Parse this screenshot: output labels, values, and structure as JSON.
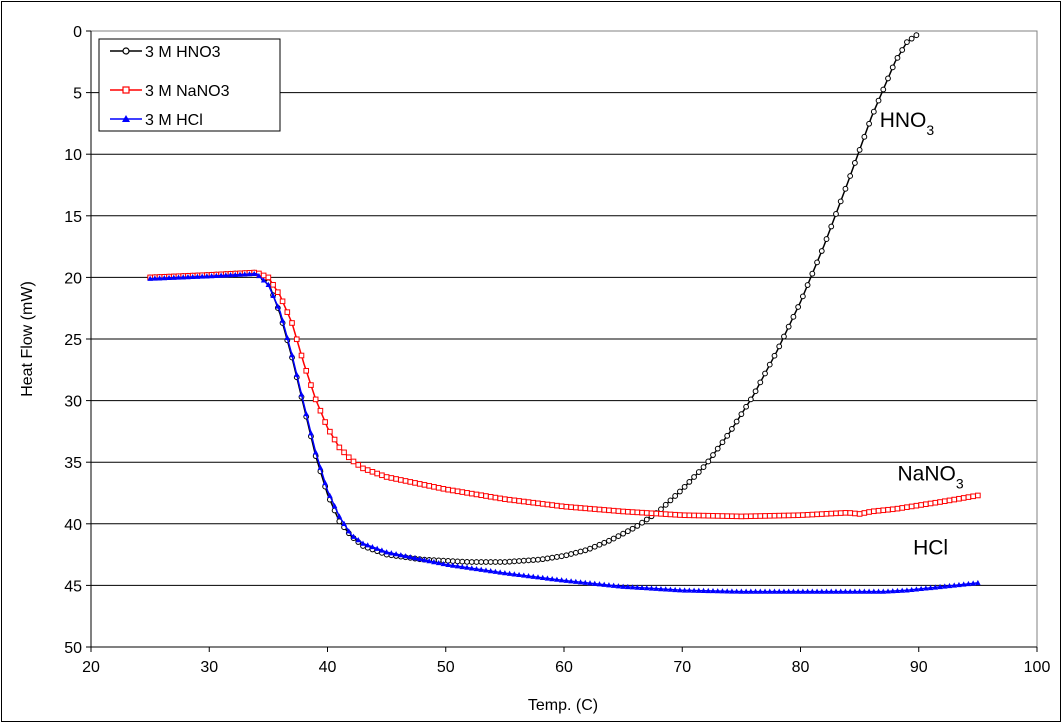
{
  "chart_data": {
    "type": "line",
    "title": "",
    "xlabel": "Temp. (C)",
    "ylabel": "Heat Flow (mW)",
    "xlim": [
      20,
      100
    ],
    "ylim": [
      0,
      50
    ],
    "y_reversed": true,
    "x_ticks": [
      20,
      30,
      40,
      50,
      60,
      70,
      80,
      90,
      100
    ],
    "y_ticks": [
      0,
      5,
      10,
      15,
      20,
      25,
      30,
      35,
      40,
      45,
      50
    ],
    "grid": "horizontal major gridlines",
    "legend_position": "top-left",
    "series": [
      {
        "name": "3 M HNO3",
        "color": "#000000",
        "marker": "circle",
        "points": [
          [
            25,
            20.0
          ],
          [
            30,
            19.8
          ],
          [
            34,
            19.6
          ],
          [
            35,
            20.4
          ],
          [
            36,
            23.0
          ],
          [
            37,
            26.5
          ],
          [
            38,
            30.5
          ],
          [
            39,
            34.5
          ],
          [
            40,
            37.6
          ],
          [
            41,
            39.8
          ],
          [
            42,
            41.0
          ],
          [
            43,
            41.8
          ],
          [
            45,
            42.5
          ],
          [
            48,
            42.9
          ],
          [
            52,
            43.1
          ],
          [
            55,
            43.1
          ],
          [
            58,
            42.9
          ],
          [
            60,
            42.6
          ],
          [
            62,
            42.1
          ],
          [
            64,
            41.3
          ],
          [
            66,
            40.3
          ],
          [
            68,
            39.0
          ],
          [
            70,
            37.2
          ],
          [
            72,
            35.2
          ],
          [
            74,
            32.6
          ],
          [
            76,
            29.6
          ],
          [
            78,
            26.0
          ],
          [
            80,
            22.0
          ],
          [
            82,
            17.4
          ],
          [
            84,
            12.3
          ],
          [
            86,
            7.0
          ],
          [
            88,
            2.5
          ],
          [
            89,
            0.9
          ],
          [
            90,
            0.2
          ]
        ]
      },
      {
        "name": "3 M NaNO3",
        "color": "#ff0000",
        "marker": "square",
        "points": [
          [
            25,
            20.0
          ],
          [
            30,
            19.8
          ],
          [
            34,
            19.6
          ],
          [
            35,
            20.0
          ],
          [
            36,
            21.5
          ],
          [
            37,
            23.7
          ],
          [
            38,
            27.0
          ],
          [
            39,
            29.9
          ],
          [
            40,
            32.2
          ],
          [
            41,
            33.8
          ],
          [
            42,
            34.8
          ],
          [
            43,
            35.5
          ],
          [
            45,
            36.2
          ],
          [
            50,
            37.2
          ],
          [
            55,
            38.0
          ],
          [
            60,
            38.6
          ],
          [
            65,
            39.0
          ],
          [
            70,
            39.3
          ],
          [
            75,
            39.4
          ],
          [
            80,
            39.3
          ],
          [
            84,
            39.1
          ],
          [
            85,
            39.2
          ],
          [
            86,
            39.0
          ],
          [
            88,
            38.8
          ],
          [
            90,
            38.5
          ],
          [
            92,
            38.2
          ],
          [
            95,
            37.7
          ]
        ]
      },
      {
        "name": "3 M HCl",
        "color": "#0000ff",
        "marker": "triangle",
        "points": [
          [
            25,
            20.1
          ],
          [
            30,
            19.9
          ],
          [
            34,
            19.7
          ],
          [
            35,
            20.6
          ],
          [
            36,
            22.8
          ],
          [
            37,
            26.3
          ],
          [
            38,
            30.3
          ],
          [
            39,
            34.2
          ],
          [
            40,
            37.3
          ],
          [
            41,
            39.4
          ],
          [
            42,
            40.9
          ],
          [
            43,
            41.6
          ],
          [
            45,
            42.3
          ],
          [
            50,
            43.3
          ],
          [
            55,
            44.0
          ],
          [
            60,
            44.6
          ],
          [
            65,
            45.1
          ],
          [
            70,
            45.4
          ],
          [
            75,
            45.5
          ],
          [
            80,
            45.5
          ],
          [
            85,
            45.5
          ],
          [
            87,
            45.5
          ],
          [
            89,
            45.4
          ],
          [
            91,
            45.2
          ],
          [
            93,
            45.0
          ],
          [
            95,
            44.8
          ]
        ]
      }
    ],
    "annotations": [
      {
        "text": "HNO",
        "sub": "3",
        "x": 89,
        "y": 7.8
      },
      {
        "text": "NaNO",
        "sub": "3",
        "x": 91,
        "y": 36.5
      },
      {
        "text": "HCl",
        "sub": "",
        "x": 91,
        "y": 42.5
      }
    ]
  }
}
